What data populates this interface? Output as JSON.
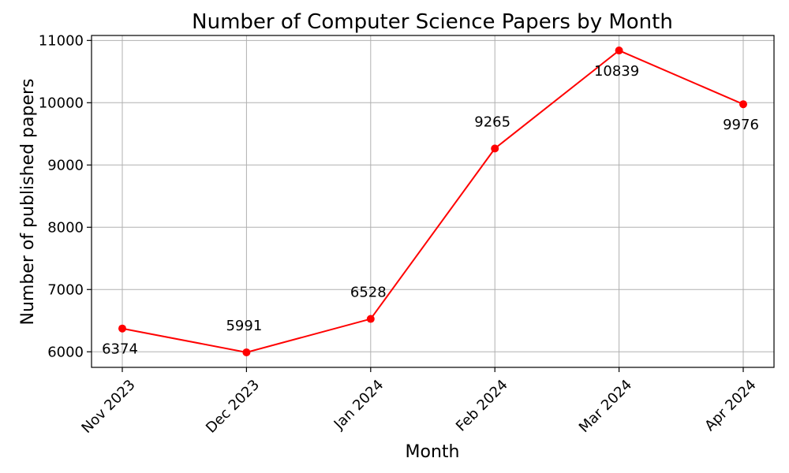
{
  "chart_data": {
    "type": "line",
    "title": "Number of Computer Science Papers by Month",
    "xlabel": "Month",
    "ylabel": "Number of published papers",
    "categories": [
      "Nov 2023",
      "Dec 2023",
      "Jan 2024",
      "Feb 2024",
      "Mar 2024",
      "Apr 2024"
    ],
    "series": [
      {
        "values": [
          6374,
          5991,
          6528,
          9265,
          10839,
          9976
        ],
        "color": "#ff0000",
        "marker": "circle"
      }
    ],
    "data_labels": [
      "6374",
      "5991",
      "6528",
      "9265",
      "10839",
      "9976"
    ],
    "ylim": [
      5750,
      11080
    ],
    "yticks": [
      6000,
      7000,
      8000,
      9000,
      10000,
      11000
    ],
    "ytick_labels": [
      "6000",
      "7000",
      "8000",
      "9000",
      "10000",
      "11000"
    ],
    "grid": true,
    "legend": false
  }
}
